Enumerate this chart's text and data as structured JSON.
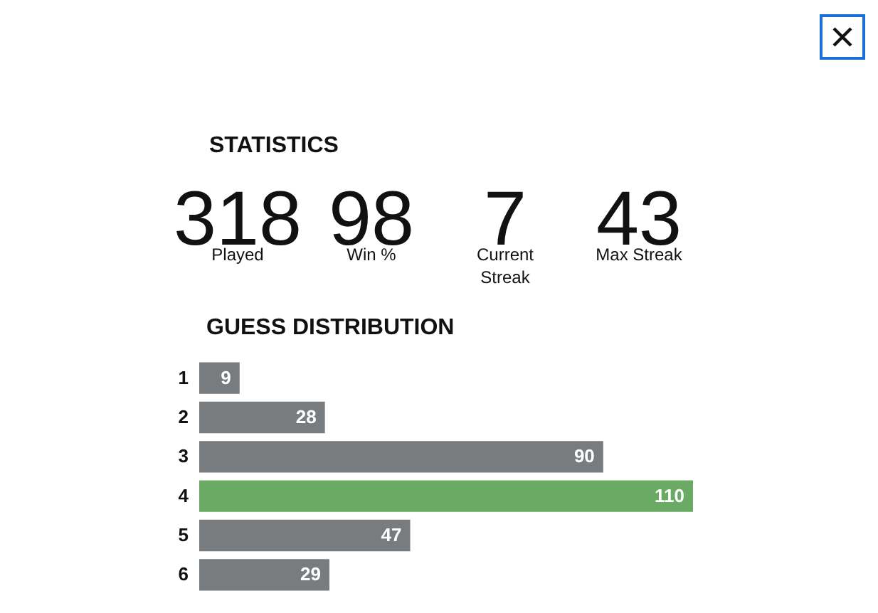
{
  "chart_data": [
    {
      "type": "other",
      "title": "STATISTICS",
      "categories": [
        "Played",
        "Win %",
        "Current Streak",
        "Max Streak"
      ],
      "values": [
        318,
        98,
        7,
        43
      ],
      "data_labels": true
    },
    {
      "type": "bar",
      "orientation": "horizontal",
      "title": "GUESS DISTRIBUTION",
      "categories": [
        "1",
        "2",
        "3",
        "4",
        "5",
        "6"
      ],
      "values": [
        9,
        28,
        90,
        110,
        47,
        29
      ],
      "colors": [
        "#787c7e",
        "#787c7e",
        "#787c7e",
        "#6aaa64",
        "#787c7e",
        "#787c7e"
      ],
      "data_labels": true
    }
  ]
}
